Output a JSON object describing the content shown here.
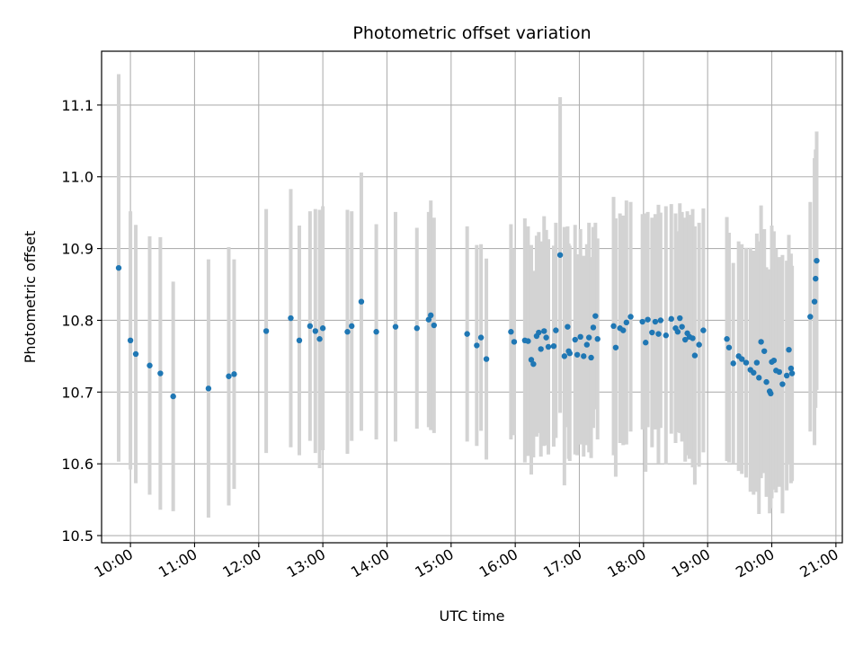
{
  "chart_data": {
    "type": "scatter",
    "title": "Photometric offset variation",
    "xlabel": "UTC time",
    "ylabel": "Photometric offset",
    "x_tick_labels": [
      "10:00",
      "11:00",
      "12:00",
      "13:00",
      "14:00",
      "15:00",
      "16:00",
      "17:00",
      "18:00",
      "19:00",
      "20:00",
      "21:00"
    ],
    "y_ticks": [
      10.5,
      10.6,
      10.7,
      10.8,
      10.9,
      11.0,
      11.1
    ],
    "y_tick_labels": [
      "10.5",
      "10.6",
      "10.7",
      "10.8",
      "10.9",
      "11.0",
      "11.1"
    ],
    "xlim": [
      "09:33",
      "21:06"
    ],
    "ylim": [
      10.49,
      11.175
    ],
    "grid": true,
    "colors": {
      "marker": "#1f77b4",
      "errorbar": "#d3d3d3",
      "grid": "#b0b0b0"
    },
    "series": [
      {
        "x": [
          "09:49",
          "10:00",
          "10:05",
          "10:18",
          "10:28",
          "10:40",
          "11:13",
          "11:32",
          "11:37",
          "12:07",
          "12:30",
          "12:38",
          "12:48",
          "12:53",
          "12:57",
          "13:00",
          "13:23",
          "13:27",
          "13:36",
          "13:50",
          "14:08",
          "14:28",
          "14:39",
          "14:41",
          "14:44",
          "15:15",
          "15:24",
          "15:28",
          "15:33",
          "15:56",
          "15:59",
          "16:09",
          "16:12",
          "16:15",
          "16:17",
          "16:20",
          "16:22",
          "16:24",
          "16:27",
          "16:29",
          "16:31",
          "16:36",
          "16:38",
          "16:42",
          "16:46",
          "16:49",
          "16:50",
          "16:51",
          "16:56",
          "16:58",
          "17:01",
          "17:04",
          "17:07",
          "17:09",
          "17:11",
          "17:13",
          "17:15",
          "17:17",
          "17:32",
          "17:34",
          "17:38",
          "17:41",
          "17:44",
          "17:48",
          "17:59",
          "18:02",
          "18:04",
          "18:08",
          "18:11",
          "18:14",
          "18:16",
          "18:21",
          "18:26",
          "18:30",
          "18:32",
          "18:34",
          "18:36",
          "18:39",
          "18:41",
          "18:43",
          "18:46",
          "18:48",
          "18:52",
          "18:56",
          "19:18",
          "19:20",
          "19:24",
          "19:29",
          "19:32",
          "19:36",
          "19:40",
          "19:43",
          "19:46",
          "19:48",
          "19:50",
          "19:53",
          "19:55",
          "19:58",
          "19:59",
          "20:00",
          "20:02",
          "20:04",
          "20:07",
          "20:10",
          "20:14",
          "20:16",
          "20:18",
          "20:19",
          "20:36",
          "20:40",
          "20:41",
          "20:42"
        ],
        "y": [
          10.873,
          10.772,
          10.753,
          10.737,
          10.726,
          10.694,
          10.705,
          10.722,
          10.725,
          10.785,
          10.803,
          10.772,
          10.792,
          10.785,
          10.774,
          10.789,
          10.784,
          10.792,
          10.826,
          10.784,
          10.791,
          10.789,
          10.801,
          10.807,
          10.793,
          10.781,
          10.765,
          10.776,
          10.746,
          10.784,
          10.77,
          10.772,
          10.771,
          10.745,
          10.739,
          10.778,
          10.783,
          10.76,
          10.785,
          10.776,
          10.763,
          10.764,
          10.786,
          10.891,
          10.75,
          10.791,
          10.757,
          10.754,
          10.773,
          10.752,
          10.777,
          10.75,
          10.766,
          10.776,
          10.748,
          10.79,
          10.806,
          10.774,
          10.792,
          10.762,
          10.789,
          10.786,
          10.797,
          10.805,
          10.798,
          10.769,
          10.801,
          10.783,
          10.798,
          10.781,
          10.8,
          10.779,
          10.802,
          10.789,
          10.784,
          10.803,
          10.791,
          10.773,
          10.782,
          10.777,
          10.775,
          10.751,
          10.766,
          10.786,
          10.774,
          10.762,
          10.74,
          10.75,
          10.746,
          10.741,
          10.731,
          10.727,
          10.741,
          10.72,
          10.77,
          10.757,
          10.714,
          10.701,
          10.698,
          10.742,
          10.744,
          10.73,
          10.728,
          10.711,
          10.723,
          10.759,
          10.733,
          10.726,
          10.805,
          10.826,
          10.858,
          10.883
        ],
        "yerr": [
          0.27,
          0.18,
          0.18,
          0.18,
          0.19,
          0.16,
          0.18,
          0.18,
          0.16,
          0.17,
          0.18,
          0.16,
          0.16,
          0.17,
          0.18,
          0.17,
          0.17,
          0.16,
          0.18,
          0.15,
          0.16,
          0.14,
          0.15,
          0.16,
          0.15,
          0.15,
          0.14,
          0.13,
          0.14,
          0.15,
          0.13,
          0.17,
          0.16,
          0.16,
          0.13,
          0.14,
          0.14,
          0.15,
          0.16,
          0.15,
          0.15,
          0.14,
          0.15,
          0.22,
          0.18,
          0.14,
          0.15,
          0.15,
          0.16,
          0.14,
          0.15,
          0.14,
          0.14,
          0.16,
          0.14,
          0.14,
          0.13,
          0.14,
          0.18,
          0.18,
          0.16,
          0.16,
          0.17,
          0.16,
          0.15,
          0.18,
          0.15,
          0.16,
          0.15,
          0.18,
          0.15,
          0.18,
          0.16,
          0.16,
          0.14,
          0.16,
          0.16,
          0.17,
          0.17,
          0.17,
          0.18,
          0.18,
          0.17,
          0.17,
          0.17,
          0.16,
          0.14,
          0.16,
          0.16,
          0.16,
          0.17,
          0.17,
          0.18,
          0.19,
          0.19,
          0.17,
          0.16,
          0.17,
          0.16,
          0.19,
          0.18,
          0.17,
          0.16,
          0.18,
          0.16,
          0.16,
          0.16,
          0.15,
          0.16,
          0.2,
          0.18,
          0.18
        ]
      }
    ]
  }
}
